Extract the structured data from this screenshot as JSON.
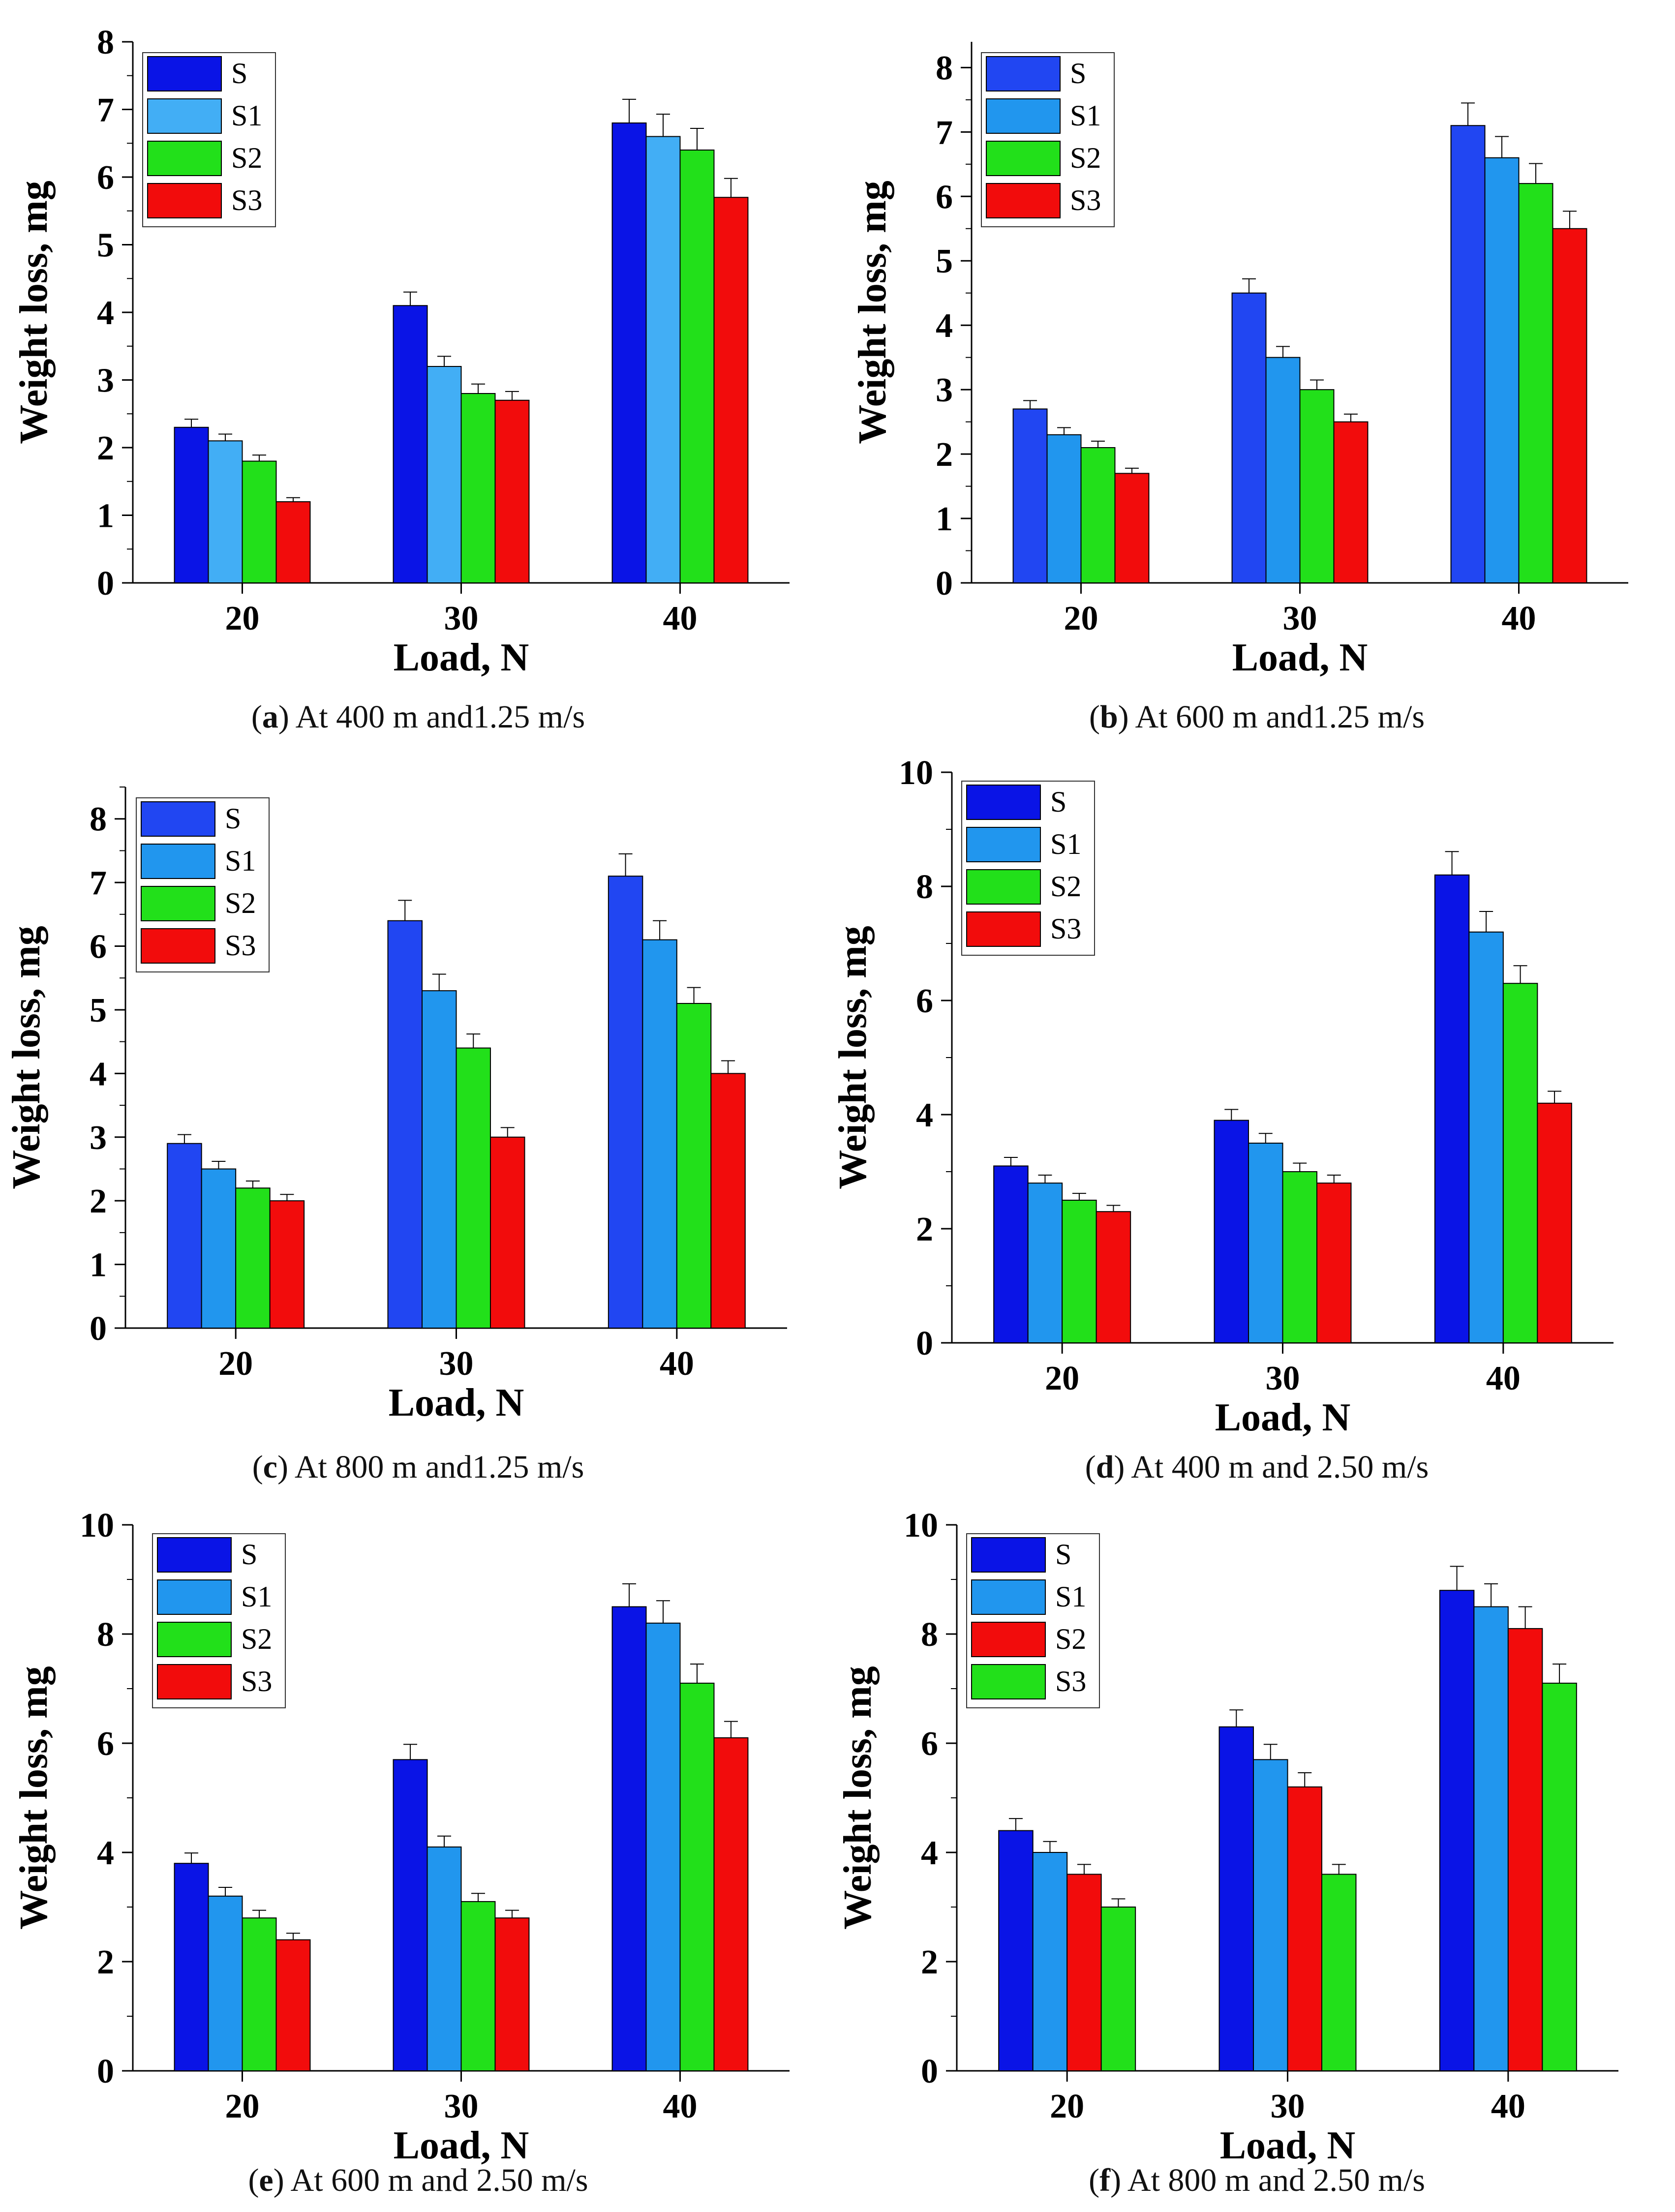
{
  "figure": {
    "panels": [
      {
        "id": "a",
        "caption_letter": "a",
        "caption_text": "At 400 m and1.25 m/s"
      },
      {
        "id": "b",
        "caption_letter": "b",
        "caption_text": "At 600 m and1.25 m/s"
      },
      {
        "id": "c",
        "caption_letter": "c",
        "caption_text": "At 800 m and1.25 m/s"
      },
      {
        "id": "d",
        "caption_letter": "d",
        "caption_text": "At 400 m and 2.50 m/s"
      },
      {
        "id": "e",
        "caption_letter": "e",
        "caption_text": "At 600 m and 2.50 m/s"
      },
      {
        "id": "f",
        "caption_letter": "f",
        "caption_text": "At 800 m and 2.50 m/s"
      }
    ]
  },
  "chart_data": [
    {
      "type": "bar",
      "title": "",
      "xlabel": "Load, N",
      "ylabel": "Weight loss, mg",
      "categories": [
        "20",
        "30",
        "40"
      ],
      "ylim": [
        0,
        8
      ],
      "yticks": [
        0,
        1,
        2,
        3,
        4,
        5,
        6,
        7,
        8
      ],
      "legend_position": "top-left",
      "series": [
        {
          "name": "S",
          "color": "#0a14e6",
          "values": [
            2.3,
            4.1,
            6.8
          ],
          "errors": [
            0.12,
            0.2,
            0.35
          ]
        },
        {
          "name": "S1",
          "color": "#42aef5",
          "values": [
            2.1,
            3.2,
            6.6
          ],
          "errors": [
            0.1,
            0.15,
            0.33
          ]
        },
        {
          "name": "S2",
          "color": "#22e01a",
          "values": [
            1.8,
            2.8,
            6.4
          ],
          "errors": [
            0.09,
            0.14,
            0.32
          ]
        },
        {
          "name": "S3",
          "color": "#f20c0c",
          "values": [
            1.2,
            2.7,
            5.7
          ],
          "errors": [
            0.06,
            0.13,
            0.28
          ]
        }
      ]
    },
    {
      "type": "bar",
      "title": "",
      "xlabel": "Load, N",
      "ylabel": "Weight loss, mg",
      "categories": [
        "20",
        "30",
        "40"
      ],
      "ylim": [
        0,
        8.4
      ],
      "yticks": [
        0,
        1,
        2,
        3,
        4,
        5,
        6,
        7,
        8
      ],
      "legend_position": "top-left",
      "series": [
        {
          "name": "S",
          "color": "#2146f2",
          "values": [
            2.7,
            4.5,
            7.1
          ],
          "errors": [
            0.13,
            0.22,
            0.35
          ]
        },
        {
          "name": "S1",
          "color": "#2196ee",
          "values": [
            2.3,
            3.5,
            6.6
          ],
          "errors": [
            0.11,
            0.17,
            0.33
          ]
        },
        {
          "name": "S2",
          "color": "#22e01a",
          "values": [
            2.1,
            3.0,
            6.2
          ],
          "errors": [
            0.1,
            0.15,
            0.31
          ]
        },
        {
          "name": "S3",
          "color": "#f20c0c",
          "values": [
            1.7,
            2.5,
            5.5
          ],
          "errors": [
            0.08,
            0.12,
            0.27
          ]
        }
      ]
    },
    {
      "type": "bar",
      "title": "",
      "xlabel": "Load, N",
      "ylabel": "Weight loss, mg",
      "categories": [
        "20",
        "30",
        "40"
      ],
      "ylim": [
        0,
        8.5
      ],
      "yticks": [
        0,
        1,
        2,
        3,
        4,
        5,
        6,
        7,
        8
      ],
      "legend_position": "top-left",
      "series": [
        {
          "name": "S",
          "color": "#2146f2",
          "values": [
            2.9,
            6.4,
            7.1
          ],
          "errors": [
            0.14,
            0.32,
            0.35
          ]
        },
        {
          "name": "S1",
          "color": "#2196ee",
          "values": [
            2.5,
            5.3,
            6.1
          ],
          "errors": [
            0.12,
            0.26,
            0.3
          ]
        },
        {
          "name": "S2",
          "color": "#22e01a",
          "values": [
            2.2,
            4.4,
            5.1
          ],
          "errors": [
            0.11,
            0.22,
            0.25
          ]
        },
        {
          "name": "S3",
          "color": "#f20c0c",
          "values": [
            2.0,
            3.0,
            4.0
          ],
          "errors": [
            0.1,
            0.15,
            0.2
          ]
        }
      ]
    },
    {
      "type": "bar",
      "title": "",
      "xlabel": "Load, N",
      "ylabel": "Weight loss, mg",
      "categories": [
        "20",
        "30",
        "40"
      ],
      "ylim": [
        0,
        10
      ],
      "yticks": [
        0,
        2,
        4,
        6,
        8,
        10
      ],
      "legend_position": "top-left",
      "series": [
        {
          "name": "S",
          "color": "#0a14e6",
          "values": [
            3.1,
            3.9,
            8.2
          ],
          "errors": [
            0.15,
            0.19,
            0.41
          ]
        },
        {
          "name": "S1",
          "color": "#2196ee",
          "values": [
            2.8,
            3.5,
            7.2
          ],
          "errors": [
            0.14,
            0.17,
            0.36
          ]
        },
        {
          "name": "S2",
          "color": "#22e01a",
          "values": [
            2.5,
            3.0,
            6.3
          ],
          "errors": [
            0.12,
            0.15,
            0.31
          ]
        },
        {
          "name": "S3",
          "color": "#f20c0c",
          "values": [
            2.3,
            2.8,
            4.2
          ],
          "errors": [
            0.11,
            0.14,
            0.21
          ]
        }
      ]
    },
    {
      "type": "bar",
      "title": "",
      "xlabel": "Load, N",
      "ylabel": "Weight loss, mg",
      "categories": [
        "20",
        "30",
        "40"
      ],
      "ylim": [
        0,
        10
      ],
      "yticks": [
        0,
        2,
        4,
        6,
        8,
        10
      ],
      "legend_position": "top-left",
      "series": [
        {
          "name": "S",
          "color": "#0a14e6",
          "values": [
            3.8,
            5.7,
            8.5
          ],
          "errors": [
            0.19,
            0.28,
            0.42
          ]
        },
        {
          "name": "S1",
          "color": "#2196ee",
          "values": [
            3.2,
            4.1,
            8.2
          ],
          "errors": [
            0.16,
            0.2,
            0.41
          ]
        },
        {
          "name": "S2",
          "color": "#22e01a",
          "values": [
            2.8,
            3.1,
            7.1
          ],
          "errors": [
            0.14,
            0.15,
            0.35
          ]
        },
        {
          "name": "S3",
          "color": "#f20c0c",
          "values": [
            2.4,
            2.8,
            6.1
          ],
          "errors": [
            0.12,
            0.14,
            0.3
          ]
        }
      ]
    },
    {
      "type": "bar",
      "title": "",
      "xlabel": "Load, N",
      "ylabel": "Weight loss, mg",
      "categories": [
        "20",
        "30",
        "40"
      ],
      "ylim": [
        0,
        10
      ],
      "yticks": [
        0,
        2,
        4,
        6,
        8,
        10
      ],
      "legend_position": "top-left",
      "series": [
        {
          "name": "S",
          "color": "#0a14e6",
          "values": [
            4.4,
            6.3,
            8.8
          ],
          "errors": [
            0.22,
            0.31,
            0.44
          ]
        },
        {
          "name": "S1",
          "color": "#2196ee",
          "values": [
            4.0,
            5.7,
            8.5
          ],
          "errors": [
            0.2,
            0.28,
            0.42
          ]
        },
        {
          "name": "S2",
          "color": "#f20c0c",
          "values": [
            3.6,
            5.2,
            8.1
          ],
          "errors": [
            0.18,
            0.26,
            0.4
          ]
        },
        {
          "name": "S3",
          "color": "#22e01a",
          "values": [
            3.0,
            3.6,
            7.1
          ],
          "errors": [
            0.15,
            0.18,
            0.35
          ]
        }
      ]
    }
  ]
}
